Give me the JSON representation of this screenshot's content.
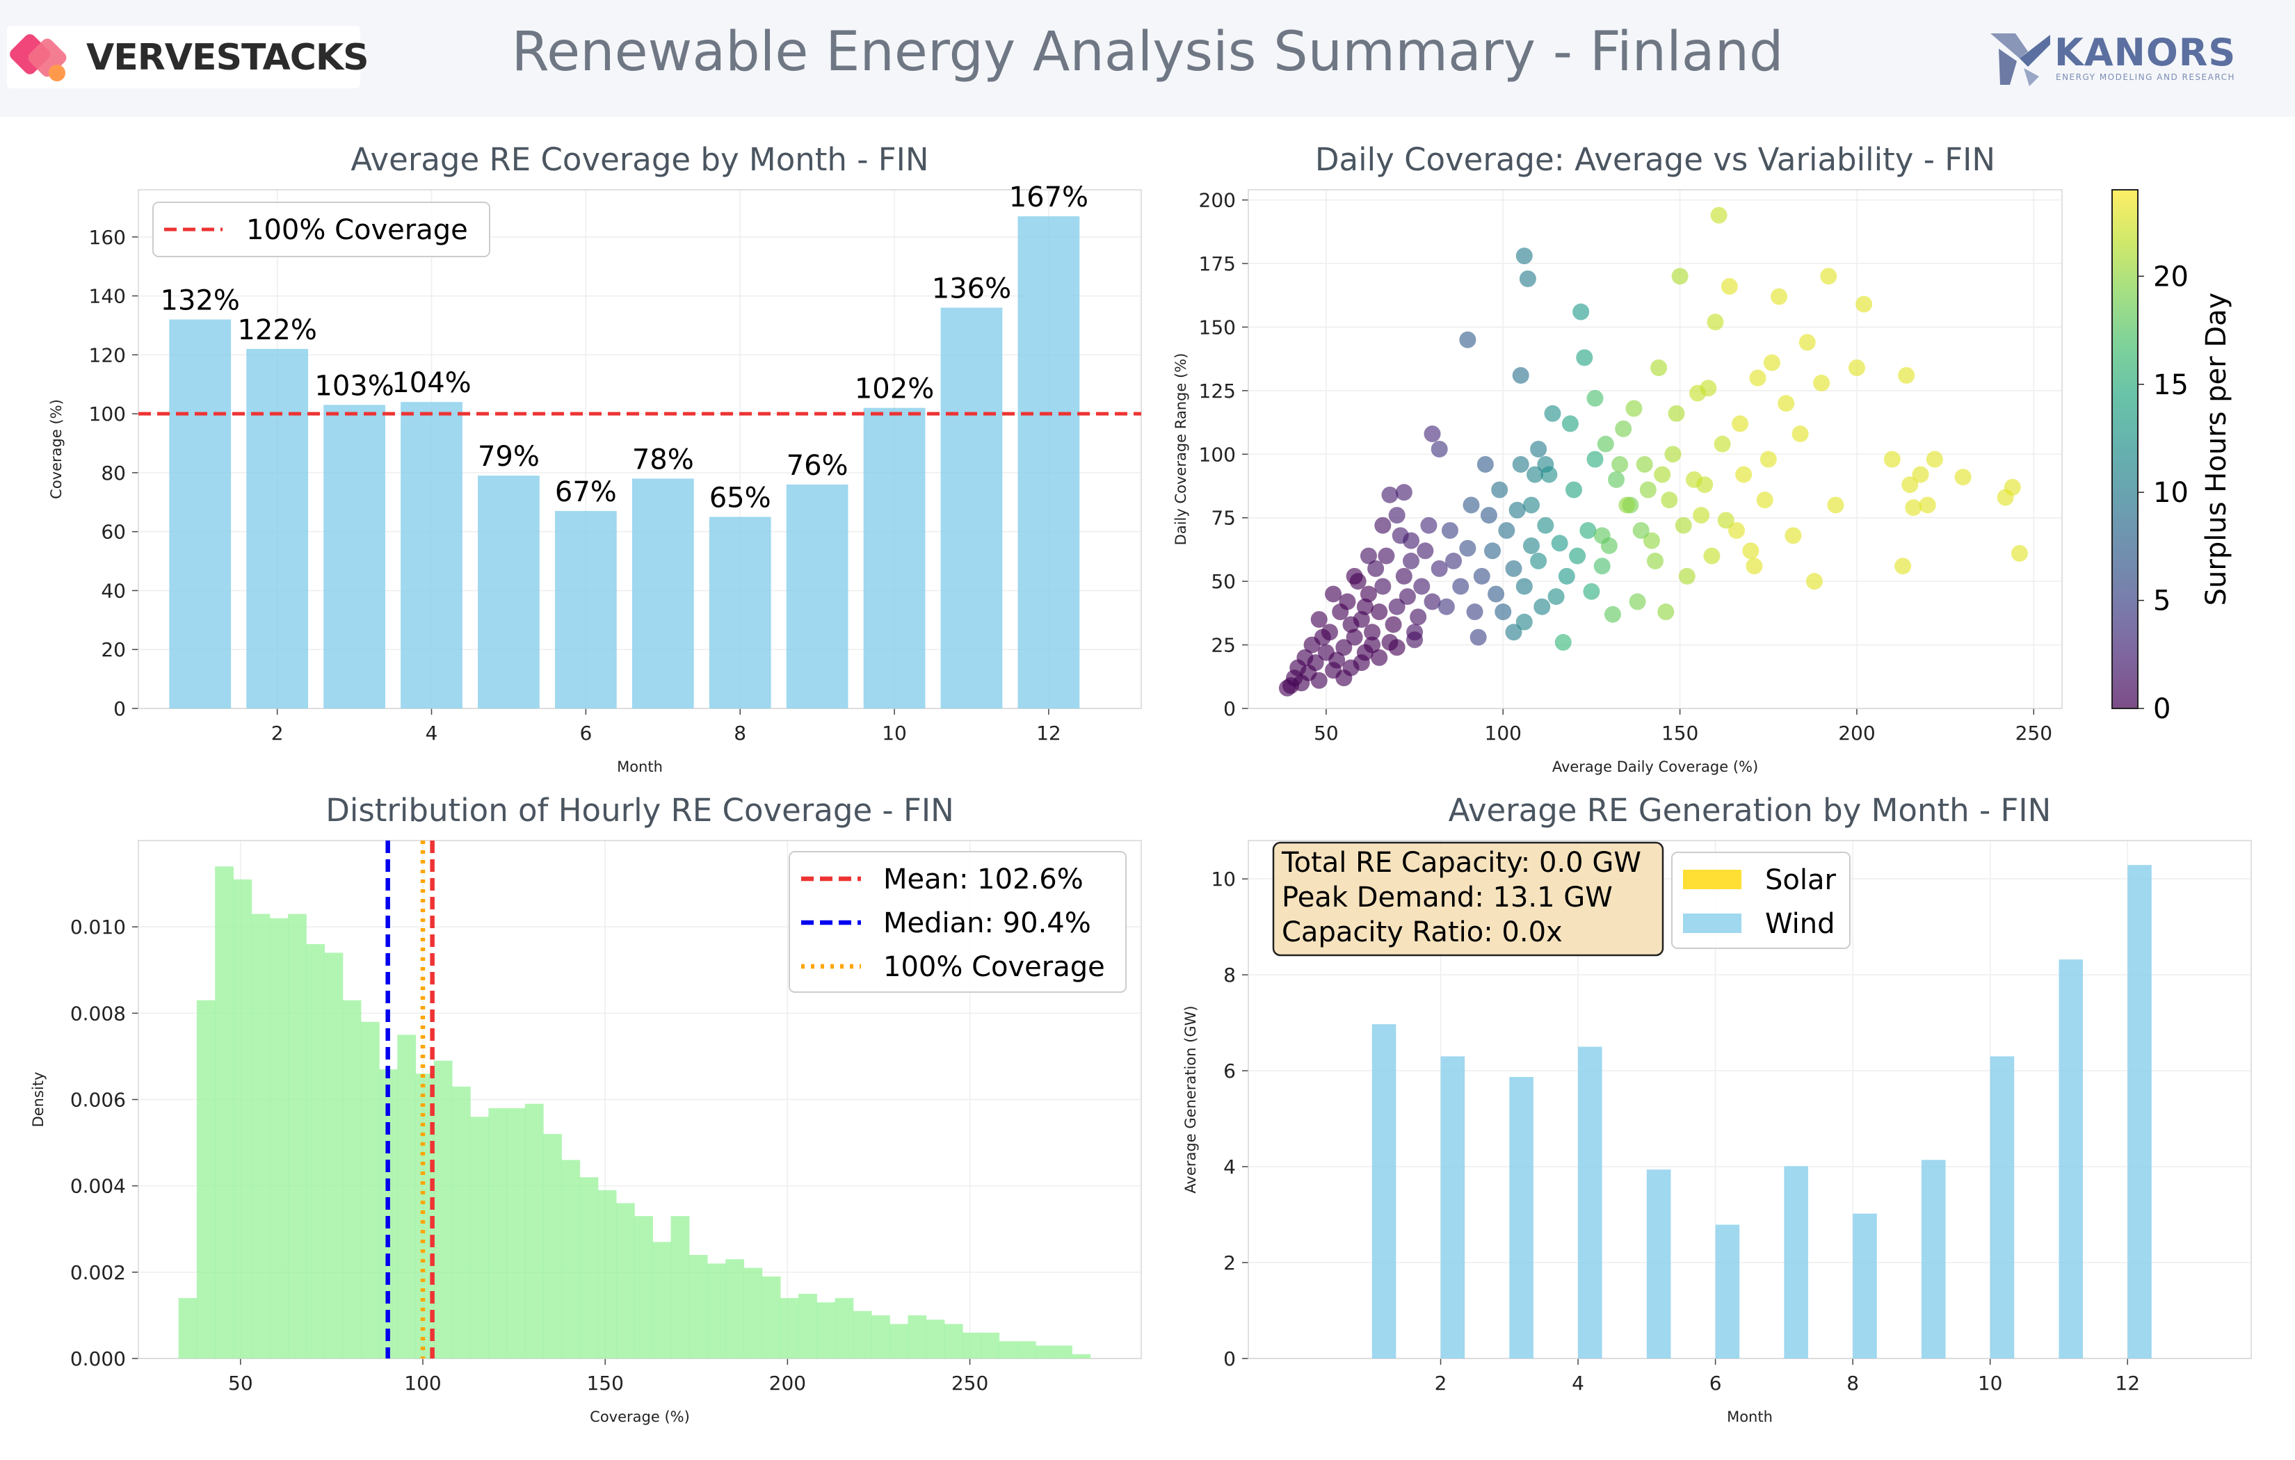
{
  "header": {
    "title": "Renewable Energy Analysis Summary - Finland",
    "logo_left": "VERVESTACKS",
    "logo_right": "KANORS",
    "logo_right_tagline": "ENERGY MODELING AND RESEARCH"
  },
  "colors": {
    "bar": "#87CEEB",
    "hist": "#98F29A",
    "line_red": "#EE3333",
    "line_blue": "#0000EE",
    "line_orange": "#FFA500",
    "solar": "#FFD700",
    "grid": "#eeeeee",
    "title_text": "#4a5560"
  },
  "chart_data": [
    {
      "id": "monthly_coverage",
      "type": "bar",
      "title": "Average RE Coverage by Month - FIN",
      "xlabel": "Month",
      "ylabel": "Coverage (%)",
      "x": [
        1,
        2,
        3,
        4,
        5,
        6,
        7,
        8,
        9,
        10,
        11,
        12
      ],
      "values": [
        132,
        122,
        103,
        104,
        79,
        67,
        78,
        65,
        76,
        102,
        136,
        167
      ],
      "data_labels": [
        "132%",
        "122%",
        "103%",
        "104%",
        "79%",
        "67%",
        "78%",
        "65%",
        "76%",
        "102%",
        "136%",
        "167%"
      ],
      "xlim": [
        0.2,
        13.2
      ],
      "ylim": [
        0,
        176
      ],
      "xticks": [
        2,
        4,
        6,
        8,
        10,
        12
      ],
      "yticks": [
        0,
        20,
        40,
        60,
        80,
        100,
        120,
        140,
        160
      ],
      "reference_line": {
        "value": 100,
        "label": "100% Coverage",
        "style": "dashed",
        "color": "#EE3333"
      },
      "legend": {
        "position": "upper-left",
        "entries": [
          "100% Coverage"
        ]
      },
      "grid": true
    },
    {
      "id": "daily_scatter",
      "type": "scatter",
      "title": "Daily Coverage: Average vs Variability - FIN",
      "xlabel": "Average Daily Coverage (%)",
      "ylabel": "Daily Coverage Range (%)",
      "xlim": [
        28,
        258
      ],
      "ylim": [
        0,
        204
      ],
      "xticks": [
        50,
        100,
        150,
        200,
        250
      ],
      "yticks": [
        0,
        25,
        50,
        75,
        100,
        125,
        150,
        175,
        200
      ],
      "colorbar": {
        "label": "Surplus Hours per Day",
        "range": [
          0,
          24
        ],
        "ticks": [
          0,
          5,
          10,
          15,
          20
        ],
        "colormap": "viridis"
      },
      "grid": true,
      "points": [
        [
          41,
          12,
          0
        ],
        [
          43,
          10,
          0
        ],
        [
          45,
          14,
          0
        ],
        [
          47,
          18,
          0
        ],
        [
          48,
          11,
          0
        ],
        [
          50,
          22,
          0
        ],
        [
          52,
          15,
          0
        ],
        [
          44,
          20,
          0
        ],
        [
          46,
          25,
          0
        ],
        [
          49,
          28,
          0
        ],
        [
          51,
          30,
          0
        ],
        [
          53,
          19,
          0
        ],
        [
          55,
          24,
          0
        ],
        [
          57,
          33,
          0
        ],
        [
          54,
          38,
          0
        ],
        [
          56,
          42,
          0
        ],
        [
          58,
          28,
          0
        ],
        [
          60,
          35,
          0
        ],
        [
          62,
          45,
          0
        ],
        [
          59,
          50,
          0
        ],
        [
          61,
          22,
          0
        ],
        [
          63,
          30,
          0
        ],
        [
          65,
          38,
          0
        ],
        [
          64,
          55,
          1
        ],
        [
          66,
          48,
          1
        ],
        [
          68,
          26,
          0
        ],
        [
          70,
          40,
          1
        ],
        [
          67,
          60,
          1
        ],
        [
          69,
          33,
          0
        ],
        [
          72,
          52,
          1
        ],
        [
          71,
          68,
          2
        ],
        [
          73,
          44,
          1
        ],
        [
          75,
          30,
          1
        ],
        [
          74,
          58,
          2
        ],
        [
          76,
          36,
          1
        ],
        [
          78,
          62,
          2
        ],
        [
          77,
          48,
          2
        ],
        [
          80,
          42,
          2
        ],
        [
          79,
          72,
          3
        ],
        [
          82,
          55,
          3
        ],
        [
          52,
          45,
          0
        ],
        [
          58,
          52,
          0
        ],
        [
          62,
          60,
          1
        ],
        [
          66,
          72,
          1
        ],
        [
          68,
          84,
          2
        ],
        [
          70,
          76,
          2
        ],
        [
          72,
          85,
          2
        ],
        [
          74,
          66,
          2
        ],
        [
          63,
          25,
          0
        ],
        [
          48,
          35,
          0
        ],
        [
          55,
          12,
          0
        ],
        [
          60,
          18,
          0
        ],
        [
          65,
          20,
          0
        ],
        [
          70,
          24,
          0
        ],
        [
          75,
          27,
          1
        ],
        [
          40,
          9,
          0
        ],
        [
          42,
          16,
          0
        ],
        [
          39,
          8,
          0
        ],
        [
          57,
          16,
          0
        ],
        [
          61,
          40,
          0
        ],
        [
          84,
          40,
          4
        ],
        [
          86,
          58,
          4
        ],
        [
          88,
          48,
          5
        ],
        [
          85,
          70,
          5
        ],
        [
          90,
          63,
          6
        ],
        [
          92,
          38,
          5
        ],
        [
          94,
          52,
          6
        ],
        [
          96,
          76,
          7
        ],
        [
          98,
          45,
          7
        ],
        [
          91,
          80,
          7
        ],
        [
          93,
          28,
          5
        ],
        [
          97,
          62,
          8
        ],
        [
          99,
          86,
          9
        ],
        [
          101,
          70,
          9
        ],
        [
          103,
          55,
          9
        ],
        [
          105,
          96,
          10
        ],
        [
          100,
          38,
          8
        ],
        [
          104,
          78,
          10
        ],
        [
          106,
          48,
          10
        ],
        [
          108,
          64,
          11
        ],
        [
          80,
          108,
          3
        ],
        [
          82,
          102,
          4
        ],
        [
          90,
          145,
          7
        ],
        [
          95,
          96,
          7
        ],
        [
          105,
          131,
          9
        ],
        [
          106,
          178,
          10
        ],
        [
          107,
          169,
          10
        ],
        [
          110,
          102,
          10
        ],
        [
          112,
          96,
          11
        ],
        [
          114,
          116,
          12
        ],
        [
          103,
          30,
          10
        ],
        [
          106,
          34,
          11
        ],
        [
          108,
          80,
          11
        ],
        [
          110,
          58,
          12
        ],
        [
          112,
          72,
          12
        ],
        [
          115,
          44,
          12
        ],
        [
          116,
          65,
          13
        ],
        [
          118,
          52,
          13
        ],
        [
          120,
          86,
          14
        ],
        [
          122,
          156,
          13
        ],
        [
          123,
          138,
          14
        ],
        [
          119,
          112,
          14
        ],
        [
          124,
          70,
          15
        ],
        [
          126,
          98,
          15
        ],
        [
          121,
          60,
          14
        ],
        [
          125,
          46,
          15
        ],
        [
          117,
          26,
          16
        ],
        [
          113,
          92,
          12
        ],
        [
          111,
          40,
          11
        ],
        [
          109,
          92,
          11
        ],
        [
          126,
          122,
          17
        ],
        [
          128,
          56,
          17
        ],
        [
          130,
          64,
          18
        ],
        [
          132,
          90,
          18
        ],
        [
          134,
          110,
          19
        ],
        [
          136,
          80,
          19
        ],
        [
          138,
          42,
          19
        ],
        [
          140,
          96,
          20
        ],
        [
          142,
          66,
          20
        ],
        [
          144,
          134,
          21
        ],
        [
          146,
          38,
          20
        ],
        [
          148,
          100,
          21
        ],
        [
          150,
          170,
          21
        ],
        [
          152,
          52,
          21
        ],
        [
          154,
          90,
          22
        ],
        [
          156,
          76,
          22
        ],
        [
          158,
          126,
          22
        ],
        [
          160,
          152,
          22
        ],
        [
          162,
          104,
          22
        ],
        [
          164,
          166,
          23
        ],
        [
          166,
          70,
          23
        ],
        [
          168,
          92,
          23
        ],
        [
          170,
          62,
          23
        ],
        [
          172,
          130,
          23
        ],
        [
          174,
          82,
          23
        ],
        [
          176,
          136,
          23
        ],
        [
          178,
          162,
          23
        ],
        [
          180,
          120,
          23
        ],
        [
          182,
          68,
          23
        ],
        [
          184,
          108,
          23
        ],
        [
          186,
          144,
          23
        ],
        [
          188,
          50,
          23
        ],
        [
          190,
          128,
          23
        ],
        [
          192,
          170,
          23
        ],
        [
          194,
          80,
          23
        ],
        [
          200,
          134,
          23
        ],
        [
          202,
          159,
          23
        ],
        [
          210,
          98,
          23
        ],
        [
          213,
          56,
          23
        ],
        [
          214,
          131,
          23
        ],
        [
          215,
          88,
          23
        ],
        [
          216,
          79,
          23
        ],
        [
          218,
          92,
          23
        ],
        [
          220,
          80,
          23
        ],
        [
          222,
          98,
          23
        ],
        [
          230,
          91,
          23
        ],
        [
          242,
          83,
          23
        ],
        [
          244,
          87,
          23
        ],
        [
          246,
          61,
          23
        ],
        [
          161,
          194,
          22
        ],
        [
          145,
          92,
          21
        ],
        [
          135,
          80,
          20
        ],
        [
          128,
          68,
          18
        ],
        [
          131,
          37,
          18
        ],
        [
          139,
          70,
          19
        ],
        [
          143,
          58,
          20
        ],
        [
          151,
          72,
          21
        ],
        [
          157,
          88,
          22
        ],
        [
          163,
          74,
          22
        ],
        [
          167,
          112,
          23
        ],
        [
          171,
          56,
          23
        ],
        [
          175,
          98,
          23
        ],
        [
          159,
          60,
          22
        ],
        [
          147,
          82,
          21
        ],
        [
          137,
          118,
          20
        ],
        [
          129,
          104,
          18
        ],
        [
          133,
          96,
          19
        ],
        [
          141,
          86,
          20
        ],
        [
          149,
          116,
          21
        ],
        [
          155,
          124,
          22
        ]
      ]
    },
    {
      "id": "hourly_distribution",
      "type": "bar",
      "title": "Distribution of Hourly RE Coverage - FIN",
      "xlabel": "Coverage (%)",
      "ylabel": "Density",
      "bin_edges": [
        33,
        38,
        43,
        48,
        53,
        58,
        63,
        68,
        73,
        78,
        83,
        88,
        93,
        98,
        103,
        108,
        113,
        118,
        123,
        128,
        133,
        138,
        143,
        148,
        153,
        158,
        163,
        168,
        173,
        178,
        183,
        188,
        193,
        198,
        203,
        208,
        213,
        218,
        223,
        228,
        233,
        238,
        243,
        248,
        253,
        258,
        263,
        268,
        273,
        278,
        283
      ],
      "values": [
        0.0014,
        0.0083,
        0.0114,
        0.0111,
        0.0103,
        0.0102,
        0.0103,
        0.0096,
        0.0094,
        0.0083,
        0.0078,
        0.0067,
        0.0075,
        0.0066,
        0.0069,
        0.0063,
        0.0056,
        0.0058,
        0.0058,
        0.0059,
        0.0052,
        0.0046,
        0.0042,
        0.0039,
        0.0036,
        0.0033,
        0.0027,
        0.0033,
        0.0024,
        0.0022,
        0.0023,
        0.0021,
        0.0019,
        0.0014,
        0.0015,
        0.0013,
        0.0014,
        0.0011,
        0.001,
        0.0008,
        0.001,
        0.0009,
        0.0008,
        0.0006,
        0.0006,
        0.0004,
        0.0004,
        0.0003,
        0.0003,
        0.0001
      ],
      "xlim": [
        22,
        297
      ],
      "ylim": [
        0,
        0.012
      ],
      "xticks": [
        50,
        100,
        150,
        200,
        250
      ],
      "yticks": [
        0.0,
        0.002,
        0.004,
        0.006,
        0.008,
        0.01
      ],
      "ytick_labels": [
        "0.000",
        "0.002",
        "0.004",
        "0.006",
        "0.008",
        "0.010"
      ],
      "reference_lines": [
        {
          "value": 102.6,
          "label": "Mean: 102.6%",
          "style": "dashed",
          "color": "#EE3333"
        },
        {
          "value": 90.4,
          "label": "Median: 90.4%",
          "style": "dashed",
          "color": "#0000EE"
        },
        {
          "value": 100,
          "label": "100% Coverage",
          "style": "dotted",
          "color": "#FFA500"
        }
      ],
      "legend": {
        "position": "upper-right",
        "entries": [
          "Mean: 102.6%",
          "Median: 90.4%",
          "100% Coverage"
        ]
      },
      "grid": true
    },
    {
      "id": "monthly_generation",
      "type": "bar",
      "title": "Average RE Generation by Month - FIN",
      "xlabel": "Month",
      "ylabel": "Average Generation (GW)",
      "categories": [
        1,
        2,
        3,
        4,
        5,
        6,
        7,
        8,
        9,
        10,
        11,
        12
      ],
      "series": [
        {
          "name": "Solar",
          "values": [
            0,
            0,
            0,
            0,
            0,
            0,
            0,
            0,
            0,
            0,
            0,
            0
          ],
          "color": "#FFD700"
        },
        {
          "name": "Wind",
          "values": [
            6.97,
            6.3,
            5.87,
            6.5,
            3.94,
            2.79,
            4.01,
            3.02,
            4.14,
            6.3,
            8.32,
            10.29
          ],
          "color": "#87CEEB"
        }
      ],
      "xlim": [
        -0.8,
        13.8
      ],
      "ylim": [
        0,
        10.8
      ],
      "xticks": [
        2,
        4,
        6,
        8,
        10,
        12
      ],
      "yticks": [
        0,
        2,
        4,
        6,
        8,
        10
      ],
      "annotation": [
        "Total RE Capacity: 0.0 GW",
        "Peak Demand: 13.1 GW",
        "Capacity Ratio: 0.0x"
      ],
      "legend": {
        "position": "upper-left",
        "entries": [
          "Solar",
          "Wind"
        ]
      },
      "grid": true
    }
  ]
}
